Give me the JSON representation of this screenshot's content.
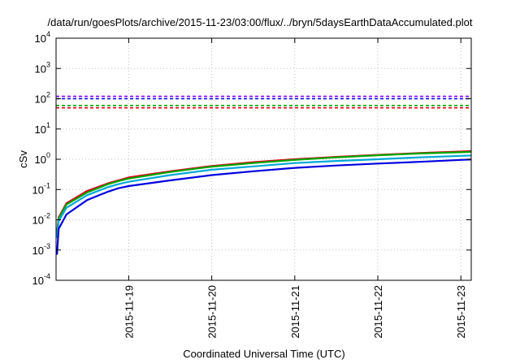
{
  "chart_data": {
    "type": "line",
    "title": "/data/run/goesPlots/archive/2015-11-23/03:00/flux/../bryn/5daysEarthDataAccumulated.plot",
    "xlabel": "Coordinated Universal Time (UTC)",
    "ylabel": "cSv",
    "yscale": "log",
    "ylim": [
      0.0001,
      10000
    ],
    "xlim": [
      "2015-11-18 03:00",
      "2015-11-23 03:00"
    ],
    "grid": true,
    "legend": "none",
    "y_ticks": [
      {
        "value": 0.0001,
        "base": "10",
        "exp": "-4"
      },
      {
        "value": 0.001,
        "base": "10",
        "exp": "-3"
      },
      {
        "value": 0.01,
        "base": "10",
        "exp": "-2"
      },
      {
        "value": 0.1,
        "base": "10",
        "exp": "-1"
      },
      {
        "value": 1,
        "base": "10",
        "exp": "0"
      },
      {
        "value": 10,
        "base": "10",
        "exp": "1"
      },
      {
        "value": 100,
        "base": "10",
        "exp": "2"
      },
      {
        "value": 1000,
        "base": "10",
        "exp": "3"
      },
      {
        "value": 10000,
        "base": "10",
        "exp": "4"
      }
    ],
    "x_ticks": [
      {
        "value": "2015-11-19 00:00",
        "label": "2015-11-19"
      },
      {
        "value": "2015-11-20 00:00",
        "label": "2015-11-20"
      },
      {
        "value": "2015-11-21 00:00",
        "label": "2015-11-21"
      },
      {
        "value": "2015-11-22 00:00",
        "label": "2015-11-22"
      },
      {
        "value": "2015-11-23 00:00",
        "label": "2015-11-23"
      }
    ],
    "series": [
      {
        "color": "#e3001b",
        "values": [
          [
            "2015-11-18 03:15",
            0.0035
          ],
          [
            "2015-11-18 03:45",
            0.012
          ],
          [
            "2015-11-18 06:00",
            0.035
          ],
          [
            "2015-11-18 12:00",
            0.09
          ],
          [
            "2015-11-18 18:00",
            0.16
          ],
          [
            "2015-11-18 21:00",
            0.2
          ],
          [
            "2015-11-19 00:00",
            0.25
          ],
          [
            "2015-11-19 12:00",
            0.4
          ],
          [
            "2015-11-20 00:00",
            0.6
          ],
          [
            "2015-11-20 12:00",
            0.8
          ],
          [
            "2015-11-21 00:00",
            1.0
          ],
          [
            "2015-11-21 12:00",
            1.2
          ],
          [
            "2015-11-22 00:00",
            1.4
          ],
          [
            "2015-11-22 12:00",
            1.6
          ],
          [
            "2015-11-23 00:00",
            1.8
          ],
          [
            "2015-11-23 03:00",
            1.85
          ]
        ]
      },
      {
        "color": "#00a800",
        "values": [
          [
            "2015-11-18 03:15",
            0.003
          ],
          [
            "2015-11-18 03:45",
            0.011
          ],
          [
            "2015-11-18 06:00",
            0.032
          ],
          [
            "2015-11-18 12:00",
            0.08
          ],
          [
            "2015-11-18 18:00",
            0.15
          ],
          [
            "2015-11-18 21:00",
            0.19
          ],
          [
            "2015-11-19 00:00",
            0.23
          ],
          [
            "2015-11-19 12:00",
            0.38
          ],
          [
            "2015-11-20 00:00",
            0.57
          ],
          [
            "2015-11-20 12:00",
            0.75
          ],
          [
            "2015-11-21 00:00",
            0.95
          ],
          [
            "2015-11-21 12:00",
            1.15
          ],
          [
            "2015-11-22 00:00",
            1.35
          ],
          [
            "2015-11-22 12:00",
            1.55
          ],
          [
            "2015-11-23 00:00",
            1.7
          ],
          [
            "2015-11-23 03:00",
            1.75
          ]
        ]
      },
      {
        "color": "#00a8d8",
        "values": [
          [
            "2015-11-18 03:15",
            0.0025
          ],
          [
            "2015-11-18 03:45",
            0.009
          ],
          [
            "2015-11-18 06:00",
            0.025
          ],
          [
            "2015-11-18 12:00",
            0.065
          ],
          [
            "2015-11-18 18:00",
            0.12
          ],
          [
            "2015-11-18 21:00",
            0.15
          ],
          [
            "2015-11-19 00:00",
            0.18
          ],
          [
            "2015-11-19 12:00",
            0.3
          ],
          [
            "2015-11-20 00:00",
            0.45
          ],
          [
            "2015-11-20 12:00",
            0.58
          ],
          [
            "2015-11-21 00:00",
            0.75
          ],
          [
            "2015-11-21 12:00",
            0.88
          ],
          [
            "2015-11-22 00:00",
            1.0
          ],
          [
            "2015-11-22 12:00",
            1.15
          ],
          [
            "2015-11-23 00:00",
            1.3
          ],
          [
            "2015-11-23 03:00",
            1.33
          ]
        ]
      },
      {
        "color": "#0000e0",
        "values": [
          [
            "2015-11-18 03:15",
            0.0007
          ],
          [
            "2015-11-18 03:45",
            0.005
          ],
          [
            "2015-11-18 06:00",
            0.015
          ],
          [
            "2015-11-18 12:00",
            0.045
          ],
          [
            "2015-11-18 18:00",
            0.085
          ],
          [
            "2015-11-18 21:00",
            0.11
          ],
          [
            "2015-11-19 00:00",
            0.13
          ],
          [
            "2015-11-19 12:00",
            0.2
          ],
          [
            "2015-11-20 00:00",
            0.3
          ],
          [
            "2015-11-20 12:00",
            0.4
          ],
          [
            "2015-11-21 00:00",
            0.52
          ],
          [
            "2015-11-21 12:00",
            0.62
          ],
          [
            "2015-11-22 00:00",
            0.72
          ],
          [
            "2015-11-22 12:00",
            0.82
          ],
          [
            "2015-11-23 00:00",
            0.95
          ],
          [
            "2015-11-23 03:00",
            0.98
          ]
        ]
      }
    ],
    "reference_lines": [
      {
        "value": 120,
        "color": "#8000ff",
        "style": "dashed"
      },
      {
        "value": 100,
        "color": "#0000e0",
        "style": "dashed"
      },
      {
        "value": 60,
        "color": "#00a800",
        "style": "dashed"
      },
      {
        "value": 50,
        "color": "#e3001b",
        "style": "dashed"
      }
    ]
  }
}
